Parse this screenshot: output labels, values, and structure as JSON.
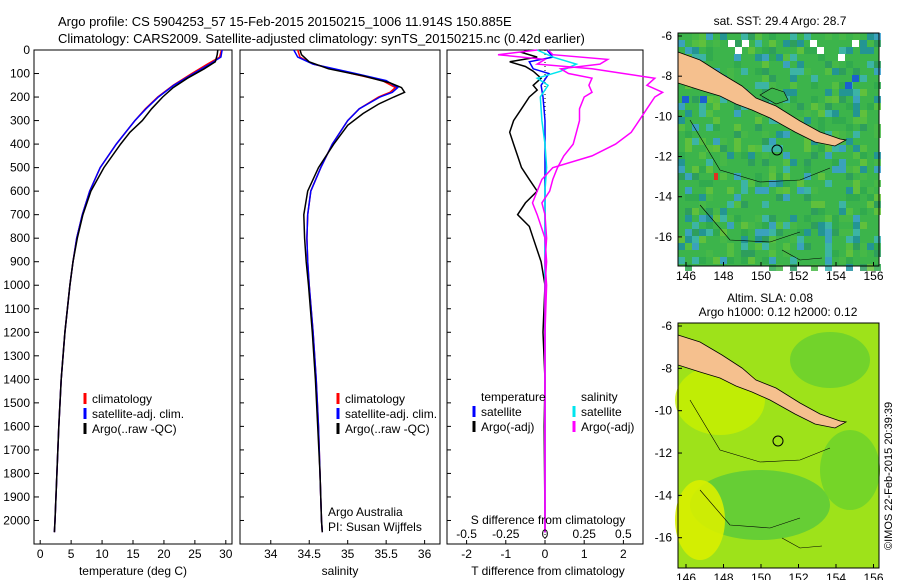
{
  "header": {
    "line1": "Argo profile: CS 5904253_57 15-Feb-2015 20150215_1006 11.914S 150.885E",
    "line2": "Climatology: CARS2009. Satellite-adjusted climatology: synTS_20150215.nc (0.42d earlier)"
  },
  "colors": {
    "climatology": "#ff0000",
    "satellite": "#0000ff",
    "argo": "#000000",
    "sal_satellite": "#00e5ee",
    "sal_argo": "#ff00ff",
    "land": "#f5c08e",
    "sea_green": "#3cb44b",
    "sea_yellow": "#c8f000"
  },
  "legends": {
    "temp": [
      "climatology",
      "satellite-adj. clim.",
      "Argo(..raw -QC)"
    ],
    "sal": [
      "climatology",
      "satellite-adj. clim.",
      "Argo(..raw -QC)"
    ],
    "diff_col1_title": "temperature",
    "diff_col2_title": "salinity",
    "diff_entries": [
      "satellite",
      "Argo(-adj)"
    ]
  },
  "credits": {
    "org": "Argo Australia",
    "pi": "PI: Susan Wijffels",
    "stamp": "©IMOS 22-Feb-2015 20:39:39"
  },
  "maps": {
    "top_title": "sat. SST: 29.4 Argo: 28.7",
    "bottom_title1": "Altim. SLA: 0.08",
    "bottom_title2": "Argo h1000: 0.12 h2000: 0.12",
    "lat_ticks": [
      "-6",
      "-8",
      "-10",
      "-12",
      "-14",
      "-16"
    ],
    "lon_ticks": [
      "146",
      "148",
      "150",
      "152",
      "154",
      "156"
    ]
  },
  "chart_data": [
    {
      "type": "line",
      "name": "temperature",
      "xlabel": "temperature (deg C)",
      "ylabel": "",
      "xlim": [
        -1,
        31
      ],
      "ylim": [
        2100,
        0
      ],
      "xticks": [
        0,
        5,
        10,
        15,
        20,
        25,
        30
      ],
      "yticks": [
        0,
        100,
        200,
        300,
        400,
        500,
        600,
        700,
        800,
        900,
        1000,
        1100,
        1200,
        1300,
        1400,
        1500,
        1600,
        1700,
        1800,
        1900,
        2000
      ],
      "series": [
        {
          "name": "climatology",
          "y": [
            0,
            30,
            60,
            100,
            150,
            200,
            250,
            300,
            400,
            500,
            600,
            700,
            800,
            900,
            1000,
            1200,
            1400,
            1600,
            1800,
            2000,
            2050
          ],
          "x": [
            29.3,
            29.0,
            27.0,
            24.5,
            21.5,
            19.0,
            17.0,
            15.3,
            12.3,
            9.7,
            8.0,
            6.8,
            5.9,
            5.3,
            4.8,
            4.0,
            3.4,
            3.0,
            2.7,
            2.4,
            2.3
          ]
        },
        {
          "name": "satellite-adj. clim.",
          "y": [
            0,
            30,
            60,
            100,
            150,
            200,
            250,
            300,
            400,
            500,
            600,
            700,
            800,
            900,
            1000,
            1200,
            1400,
            1600,
            1800,
            2000,
            2050
          ],
          "x": [
            29.4,
            29.2,
            27.4,
            24.8,
            21.6,
            19.1,
            17.1,
            15.3,
            12.3,
            9.7,
            8.0,
            6.8,
            5.9,
            5.3,
            4.8,
            4.0,
            3.4,
            3.0,
            2.7,
            2.4,
            2.3
          ]
        },
        {
          "name": "Argo(..raw -QC)",
          "y": [
            0,
            20,
            50,
            80,
            120,
            160,
            200,
            250,
            300,
            350,
            400,
            500,
            600,
            700,
            800,
            900,
            1000,
            1200,
            1400,
            1600,
            1800,
            2000,
            2050
          ],
          "x": [
            28.7,
            28.6,
            28.3,
            26.5,
            23.8,
            21.5,
            19.8,
            18.0,
            16.5,
            14.5,
            13.0,
            10.3,
            8.2,
            6.9,
            6.0,
            5.3,
            4.8,
            4.0,
            3.4,
            3.0,
            2.7,
            2.4,
            2.3
          ]
        }
      ]
    },
    {
      "type": "line",
      "name": "salinity",
      "xlabel": "salinity",
      "ylabel": "",
      "xlim": [
        33.6,
        36.2
      ],
      "ylim": [
        2100,
        0
      ],
      "xticks": [
        34,
        34.5,
        35,
        35.5,
        36
      ],
      "xticklabels": [
        "34",
        "34.5",
        "35",
        "35.5",
        "36"
      ],
      "series": [
        {
          "name": "climatology",
          "y": [
            0,
            30,
            60,
            100,
            130,
            160,
            180,
            200,
            250,
            300,
            400,
            500,
            600,
            700,
            800,
            900,
            1000,
            1200,
            1400,
            1600,
            1800,
            2000,
            2050
          ],
          "x": [
            34.35,
            34.38,
            34.55,
            35.05,
            35.45,
            35.62,
            35.55,
            35.4,
            35.15,
            35.0,
            34.8,
            34.65,
            34.52,
            34.48,
            34.47,
            34.48,
            34.5,
            34.55,
            34.59,
            34.62,
            34.64,
            34.66,
            34.67
          ]
        },
        {
          "name": "satellite-adj. clim.",
          "y": [
            0,
            30,
            60,
            100,
            130,
            160,
            180,
            200,
            250,
            300,
            400,
            500,
            600,
            700,
            800,
            900,
            1000,
            1200,
            1400,
            1600,
            1800,
            2000,
            2050
          ],
          "x": [
            34.3,
            34.35,
            34.55,
            35.1,
            35.5,
            35.65,
            35.58,
            35.42,
            35.15,
            35.0,
            34.8,
            34.65,
            34.52,
            34.48,
            34.47,
            34.48,
            34.5,
            34.55,
            34.59,
            34.62,
            34.64,
            34.66,
            34.67
          ]
        },
        {
          "name": "Argo(..raw -QC)",
          "y": [
            0,
            20,
            50,
            80,
            110,
            140,
            160,
            180,
            200,
            230,
            270,
            320,
            400,
            500,
            600,
            700,
            800,
            900,
            1000,
            1200,
            1400,
            1600,
            1800,
            2000,
            2050
          ],
          "x": [
            34.38,
            34.4,
            34.5,
            34.75,
            35.2,
            35.55,
            35.7,
            35.74,
            35.6,
            35.4,
            35.2,
            35.0,
            34.82,
            34.62,
            34.48,
            34.43,
            34.44,
            34.46,
            34.49,
            34.54,
            34.58,
            34.61,
            34.64,
            34.66,
            34.67
          ]
        }
      ]
    },
    {
      "type": "line",
      "name": "difference from climatology",
      "xlabel": "T difference from climatology",
      "xlabel_top": "S difference from climatology",
      "ylabel": "",
      "xlim": [
        -2.5,
        2.5
      ],
      "ylim": [
        2100,
        0
      ],
      "xticks": [
        -2,
        -1,
        0,
        1,
        2
      ],
      "xticklabels": [
        "-2",
        "-1",
        "0",
        "1",
        "2"
      ],
      "sticks": [
        -0.5,
        -0.25,
        0,
        0.25,
        0.5
      ],
      "sticklabels": [
        "-0.5",
        "-0.25",
        "0",
        "0.25",
        "0.5"
      ],
      "series": [
        {
          "name": "temperature satellite",
          "y": [
            0,
            30,
            50,
            80,
            100,
            150,
            200,
            300,
            400,
            600,
            800,
            1000,
            1500,
            2000,
            2050
          ],
          "x": [
            0.05,
            0.2,
            -0.4,
            -0.3,
            0.1,
            -0.1,
            -0.05,
            0.0,
            0.0,
            0.0,
            0.0,
            0.0,
            0.0,
            0.0,
            0.0
          ]
        },
        {
          "name": "temperature Argo(-adj)",
          "y": [
            0,
            10,
            30,
            50,
            70,
            90,
            120,
            150,
            170,
            200,
            250,
            300,
            350,
            400,
            450,
            500,
            550,
            600,
            650,
            700,
            750,
            800,
            900,
            1000,
            1200,
            1400,
            1600,
            2000,
            2050
          ],
          "x": [
            -0.4,
            -0.6,
            -0.2,
            -0.9,
            -0.5,
            -0.3,
            -0.1,
            -0.3,
            -0.2,
            -0.4,
            -0.6,
            -0.8,
            -0.9,
            -0.8,
            -0.7,
            -0.6,
            -0.4,
            -0.2,
            -0.5,
            -0.7,
            -0.4,
            -0.3,
            -0.1,
            0.0,
            -0.05,
            0.0,
            -0.02,
            0.0,
            0.0
          ]
        },
        {
          "name": "salinity satellite",
          "y": [
            0,
            30,
            60,
            90,
            120,
            150,
            200,
            300,
            400,
            500,
            600,
            800,
            1000,
            1500,
            2000,
            2050
          ],
          "x": [
            -0.05,
            0.05,
            0.2,
            0.1,
            -0.05,
            0.02,
            -0.03,
            -0.02,
            0.0,
            0.01,
            0.0,
            0.0,
            0.0,
            0.0,
            0.0,
            0.0
          ]
        },
        {
          "name": "salinity Argo(-adj)",
          "y": [
            0,
            20,
            40,
            60,
            80,
            100,
            120,
            150,
            180,
            200,
            250,
            300,
            350,
            400,
            450,
            500,
            550,
            600,
            650,
            700,
            800,
            900,
            1000,
            1200,
            1500,
            2000,
            2050
          ],
          "x": [
            0.02,
            0.05,
            0.4,
            0.35,
            0.1,
            0.15,
            0.3,
            0.28,
            0.3,
            0.25,
            0.22,
            0.22,
            0.2,
            0.18,
            0.12,
            0.08,
            0.05,
            0.03,
            -0.02,
            0.0,
            0.01,
            0.0,
            0.01,
            0.0,
            0.0,
            0.0,
            0.0
          ]
        },
        {
          "name": "salinity Argo raw",
          "y": [
            0,
            20,
            40,
            60,
            80,
            100,
            120,
            150,
            180,
            200,
            250,
            300,
            350,
            400,
            450,
            500,
            550,
            600,
            650,
            700,
            800,
            900,
            1000,
            1200,
            1500,
            2000,
            2050
          ],
          "x": [
            -0.05,
            -0.3,
            0.0,
            -0.05,
            0.3,
            0.5,
            0.7,
            0.65,
            0.75,
            0.7,
            0.65,
            0.6,
            0.55,
            0.45,
            0.3,
            0.05,
            -0.02,
            -0.05,
            -0.08,
            -0.05,
            0.0,
            0.01,
            0.0,
            0.0,
            0.0,
            0.0,
            0.0
          ]
        }
      ]
    }
  ]
}
